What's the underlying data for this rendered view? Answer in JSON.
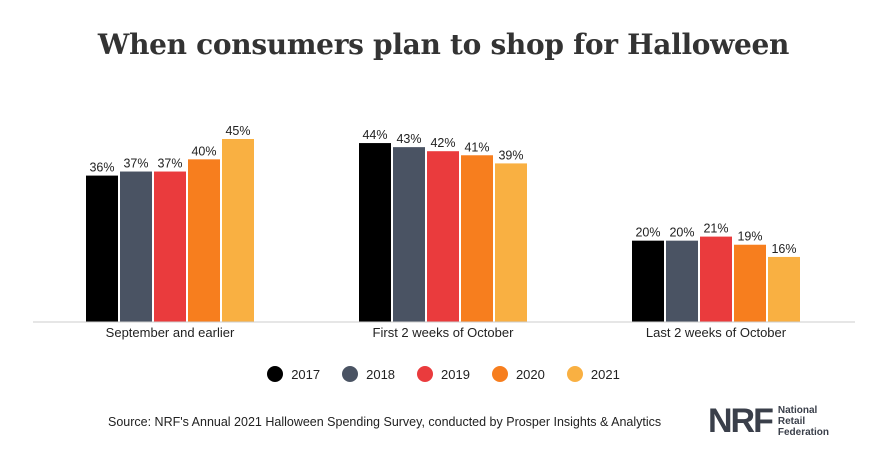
{
  "chart_data": {
    "type": "bar",
    "title": "When consumers plan to shop for Halloween",
    "categories": [
      "September and earlier",
      "First 2 weeks of October",
      "Last 2 weeks of October"
    ],
    "series": [
      {
        "name": "2017",
        "values": [
          36,
          44,
          20
        ],
        "color": "#000000"
      },
      {
        "name": "2018",
        "values": [
          37,
          43,
          20
        ],
        "color": "#4a5363"
      },
      {
        "name": "2019",
        "values": [
          37,
          42,
          21
        ],
        "color": "#ea3b3d"
      },
      {
        "name": "2020",
        "values": [
          40,
          41,
          19
        ],
        "color": "#f77e1e"
      },
      {
        "name": "2021",
        "values": [
          45,
          39,
          16
        ],
        "color": "#f9b042"
      }
    ],
    "value_suffix": "%",
    "ylim": [
      0,
      45
    ],
    "legend_position": "bottom",
    "grid": false
  },
  "source": "Source: NRF's Annual 2021 Halloween Spending Survey, conducted by Prosper Insights & Analytics",
  "logo": {
    "mark": "NRF",
    "line1": "National",
    "line2": "Retail",
    "line3": "Federation"
  }
}
